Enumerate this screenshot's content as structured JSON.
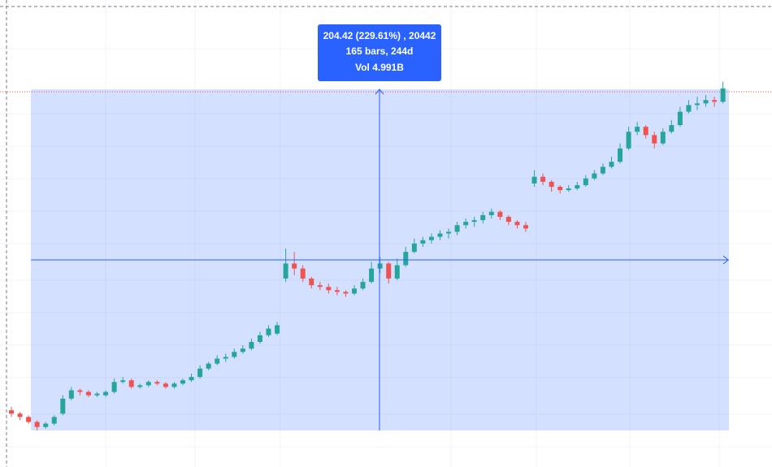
{
  "chart_data": {
    "type": "candlestick",
    "annotations": [
      "204.42 (229.61%) , 20442",
      "165 bars, 244d",
      "Vol 4.991B"
    ],
    "up_color": "#26a69a",
    "down_color": "#ef5350",
    "ylim": [
      67,
      347
    ],
    "candles": [
      [
        101,
        103,
        97,
        99
      ],
      [
        99,
        100,
        95,
        97
      ],
      [
        97,
        98,
        93,
        94
      ],
      [
        94,
        95,
        89,
        91
      ],
      [
        91,
        94,
        90,
        93
      ],
      [
        93,
        98,
        92,
        97
      ],
      [
        99,
        110,
        98,
        108
      ],
      [
        108,
        115,
        107,
        113
      ],
      [
        113,
        114,
        110,
        112
      ],
      [
        112,
        113,
        109,
        110
      ],
      [
        110,
        112,
        109,
        111
      ],
      [
        110,
        113,
        109,
        112
      ],
      [
        112,
        120,
        111,
        118
      ],
      [
        118,
        121,
        117,
        119
      ],
      [
        119,
        120,
        114,
        115
      ],
      [
        115,
        117,
        114,
        116
      ],
      [
        116,
        119,
        115,
        118
      ],
      [
        118,
        119,
        116,
        117
      ],
      [
        117,
        118,
        114,
        115
      ],
      [
        115,
        118,
        114,
        117
      ],
      [
        117,
        120,
        116,
        119
      ],
      [
        119,
        123,
        118,
        121
      ],
      [
        121,
        128,
        120,
        126
      ],
      [
        126,
        130,
        125,
        129
      ],
      [
        129,
        134,
        128,
        132
      ],
      [
        132,
        135,
        130,
        133
      ],
      [
        133,
        138,
        132,
        136
      ],
      [
        136,
        140,
        135,
        138
      ],
      [
        138,
        144,
        137,
        142
      ],
      [
        142,
        148,
        141,
        146
      ],
      [
        146,
        152,
        145,
        150
      ],
      [
        147,
        154,
        146,
        152
      ],
      [
        180,
        198,
        178,
        189
      ],
      [
        189,
        196,
        182,
        186
      ],
      [
        186,
        188,
        178,
        180
      ],
      [
        180,
        181,
        174,
        176
      ],
      [
        176,
        178,
        173,
        175
      ],
      [
        175,
        177,
        171,
        173
      ],
      [
        173,
        175,
        170,
        172
      ],
      [
        172,
        173,
        169,
        171
      ],
      [
        171,
        176,
        170,
        174
      ],
      [
        174,
        180,
        173,
        178
      ],
      [
        178,
        190,
        177,
        186
      ],
      [
        186,
        193,
        183,
        189
      ],
      [
        189,
        190,
        177,
        180
      ],
      [
        180,
        192,
        179,
        188
      ],
      [
        188,
        199,
        187,
        196
      ],
      [
        196,
        204,
        195,
        201
      ],
      [
        201,
        205,
        199,
        203
      ],
      [
        203,
        207,
        201,
        205
      ],
      [
        205,
        209,
        203,
        207
      ],
      [
        207,
        210,
        204,
        208
      ],
      [
        208,
        214,
        206,
        212
      ],
      [
        212,
        216,
        210,
        214
      ],
      [
        214,
        217,
        211,
        215
      ],
      [
        215,
        220,
        213,
        218
      ],
      [
        218,
        222,
        216,
        220
      ],
      [
        220,
        221,
        215,
        217
      ],
      [
        217,
        218,
        212,
        214
      ],
      [
        214,
        215,
        210,
        212
      ],
      [
        212,
        214,
        208,
        210
      ],
      [
        237,
        245,
        235,
        241
      ],
      [
        241,
        243,
        236,
        238
      ],
      [
        238,
        239,
        232,
        235
      ],
      [
        235,
        236,
        231,
        233
      ],
      [
        233,
        236,
        232,
        234
      ],
      [
        234,
        238,
        233,
        236
      ],
      [
        236,
        242,
        235,
        240
      ],
      [
        240,
        245,
        239,
        243
      ],
      [
        243,
        249,
        242,
        247
      ],
      [
        247,
        253,
        246,
        250
      ],
      [
        250,
        261,
        249,
        258
      ],
      [
        258,
        271,
        257,
        268
      ],
      [
        268,
        274,
        266,
        271
      ],
      [
        271,
        272,
        264,
        266
      ],
      [
        266,
        268,
        258,
        261
      ],
      [
        261,
        270,
        260,
        268
      ],
      [
        268,
        275,
        267,
        272
      ],
      [
        272,
        283,
        271,
        280
      ],
      [
        280,
        287,
        279,
        284
      ],
      [
        284,
        289,
        281,
        285
      ],
      [
        285,
        290,
        283,
        287
      ],
      [
        287,
        289,
        283,
        286
      ],
      [
        286,
        298,
        285,
        294
      ]
    ]
  }
}
